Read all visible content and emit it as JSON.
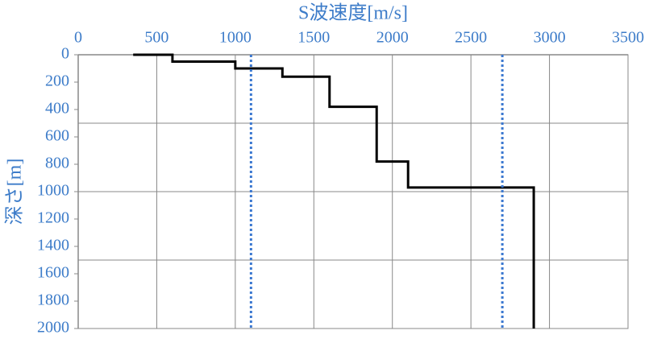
{
  "chart_data": {
    "type": "line",
    "xlabel": "S波速度[m/s]",
    "ylabel": "深さ[m]",
    "xlim": [
      0,
      3500
    ],
    "xticks": [
      0,
      500,
      1000,
      1500,
      2000,
      2500,
      3000,
      3500
    ],
    "ylim": [
      0,
      2000
    ],
    "yticks": [
      0,
      200,
      400,
      600,
      800,
      1000,
      1200,
      1400,
      1600,
      1800,
      2000
    ],
    "y_inverted": true,
    "x_axis_position": "top",
    "grid": true,
    "ygrid": [
      500,
      1000,
      1500
    ],
    "series": [
      {
        "color": "#000000",
        "style": "solid",
        "x": [
          350,
          600,
          600,
          1000,
          1000,
          1300,
          1300,
          1600,
          1600,
          1900,
          1900,
          2100,
          2100,
          2900,
          2900
        ],
        "values": [
          0,
          0,
          50,
          50,
          100,
          100,
          160,
          160,
          380,
          380,
          780,
          780,
          970,
          970,
          2000
        ]
      },
      {
        "color": "#3b78d0",
        "style": "dotted",
        "x": [
          1100,
          1100
        ],
        "values": [
          0,
          2000
        ]
      },
      {
        "color": "#3b78d0",
        "style": "dotted",
        "x": [
          2700,
          2700
        ],
        "values": [
          0,
          2000
        ]
      }
    ]
  }
}
